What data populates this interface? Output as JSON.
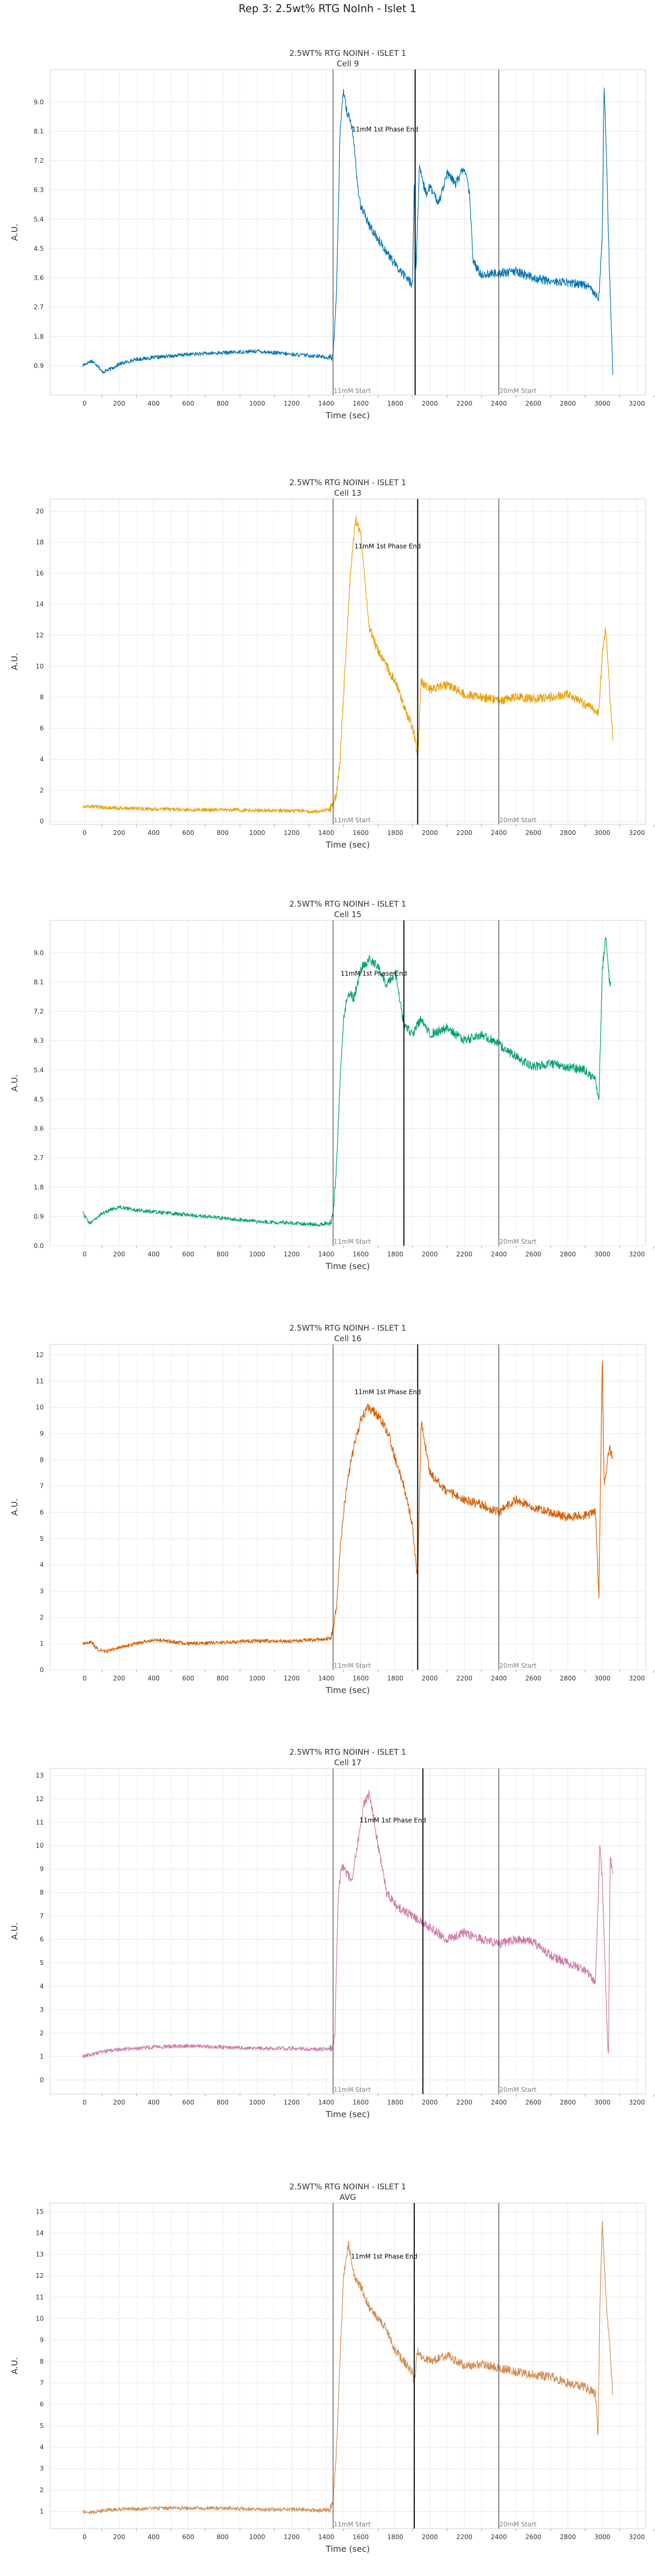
{
  "suptitle": "Rep 3: 2.5wt% RTG NoInh - Islet 1",
  "colors": {
    "cell9": "#0072b2",
    "cell13": "#e69f00",
    "cell15": "#009e73",
    "cell16": "#d55e00",
    "cell17": "#cc79a7",
    "avg": "#d08c50",
    "grid": "#e6e6e6",
    "spine": "#cccccc",
    "event_line": "#000000",
    "event_label": "#808080"
  },
  "chart_data": [
    {
      "type": "line",
      "title": "2.5WT% RTG NOINH - ISLET 1",
      "subtitle": "Cell 9",
      "xlabel": "Time (sec)",
      "ylabel": "A.U.",
      "xlim": [
        -200,
        3250
      ],
      "ylim": [
        0,
        10
      ],
      "xticks": [
        0,
        200,
        400,
        600,
        800,
        1000,
        1200,
        1400,
        1600,
        1800,
        2000,
        2200,
        2400,
        2600,
        2800,
        3000,
        3200
      ],
      "yticks": [
        0.9,
        1.8,
        2.7,
        3.6,
        4.5,
        5.4,
        6.3,
        7.2,
        8.1,
        9.0
      ],
      "ytick_labels": [
        "0.9",
        "1.8",
        "2.7",
        "3.6",
        "4.5",
        "5.4",
        "6.3",
        "7.2",
        "8.1",
        "9.0"
      ],
      "grid": true,
      "color_key": "cell9",
      "vlines": [
        {
          "x": 1440,
          "label": "11mM Start",
          "label_pos": "bottom"
        },
        {
          "x": 1915,
          "label": "11mM 1st Phase End",
          "label_pos": "top"
        },
        {
          "x": 2400,
          "label": "20mM Start",
          "label_pos": "bottom"
        }
      ],
      "phase_end_label_y": 8.1,
      "series": [
        {
          "x": [
            -10,
            0,
            40,
            80,
            100,
            150,
            200,
            300,
            400,
            600,
            800,
            1000,
            1200,
            1350,
            1420,
            1440,
            1460,
            1480,
            1500,
            1520,
            1540,
            1560,
            1580,
            1600,
            1650,
            1700,
            1750,
            1800,
            1850,
            1900,
            1910,
            1920,
            1940,
            1960,
            1980,
            2000,
            2050,
            2100,
            2150,
            2200,
            2230,
            2250,
            2270,
            2300,
            2400,
            2500,
            2600,
            2700,
            2800,
            2900,
            2950,
            2980,
            3000,
            3010,
            3020,
            3040,
            3050,
            3060
          ],
          "y": [
            0.9,
            0.95,
            1.05,
            0.9,
            0.7,
            0.8,
            0.95,
            1.1,
            1.15,
            1.25,
            1.3,
            1.35,
            1.25,
            1.2,
            1.15,
            1.2,
            3.2,
            8.0,
            9.4,
            8.7,
            8.5,
            7.8,
            6.5,
            5.8,
            5.2,
            4.8,
            4.4,
            4.0,
            3.7,
            3.4,
            6.5,
            3.8,
            7.0,
            6.5,
            6.2,
            6.4,
            5.9,
            6.8,
            6.5,
            7.0,
            6.2,
            4.2,
            3.9,
            3.7,
            3.75,
            3.8,
            3.6,
            3.5,
            3.45,
            3.4,
            3.2,
            3.0,
            5.0,
            9.5,
            8.0,
            4.0,
            2.5,
            0.7
          ]
        }
      ]
    },
    {
      "type": "line",
      "title": "2.5WT% RTG NOINH - ISLET 1",
      "subtitle": "Cell 13",
      "xlabel": "Time (sec)",
      "ylabel": "A.U.",
      "xlim": [
        -200,
        3250
      ],
      "ylim": [
        -0.2,
        20.8
      ],
      "xticks": [
        0,
        200,
        400,
        600,
        800,
        1000,
        1200,
        1400,
        1600,
        1800,
        2000,
        2200,
        2400,
        2600,
        2800,
        3000,
        3200
      ],
      "yticks": [
        0,
        2,
        4,
        6,
        8,
        10,
        12,
        14,
        16,
        18,
        20
      ],
      "ytick_labels": [
        "0",
        "2",
        "4",
        "6",
        "8",
        "10",
        "12",
        "14",
        "16",
        "18",
        "20"
      ],
      "grid": true,
      "color_key": "cell13",
      "vlines": [
        {
          "x": 1440,
          "label": "11mM Start",
          "label_pos": "bottom"
        },
        {
          "x": 1930,
          "label": "11mM 1st Phase End",
          "label_pos": "top"
        },
        {
          "x": 2400,
          "label": "20mM Start",
          "label_pos": "bottom"
        }
      ],
      "phase_end_label_y": 17.6,
      "series": [
        {
          "x": [
            -10,
            100,
            200,
            400,
            600,
            800,
            1000,
            1200,
            1350,
            1420,
            1440,
            1460,
            1480,
            1500,
            1540,
            1570,
            1600,
            1620,
            1650,
            1700,
            1750,
            1800,
            1850,
            1900,
            1920,
            1930,
            1950,
            2000,
            2100,
            2200,
            2300,
            2400,
            2500,
            2600,
            2700,
            2800,
            2900,
            2950,
            2980,
            3000,
            3020,
            3050,
            3060
          ],
          "y": [
            1.0,
            0.9,
            0.85,
            0.8,
            0.75,
            0.75,
            0.7,
            0.7,
            0.6,
            0.8,
            1.0,
            1.8,
            4.0,
            8.0,
            16.0,
            19.5,
            18.5,
            16.0,
            12.5,
            11.0,
            10.0,
            9.0,
            7.5,
            6.0,
            5.0,
            4.0,
            9.0,
            8.5,
            8.8,
            8.2,
            8.0,
            7.8,
            8.0,
            7.9,
            8.0,
            8.2,
            7.5,
            7.3,
            7.0,
            11.0,
            12.5,
            7.0,
            5.5
          ]
        }
      ]
    },
    {
      "type": "line",
      "title": "2.5WT% RTG NOINH - ISLET 1",
      "subtitle": "Cell 15",
      "xlabel": "Time (sec)",
      "ylabel": "A.U.",
      "xlim": [
        -200,
        3250
      ],
      "ylim": [
        0,
        10
      ],
      "xticks": [
        0,
        200,
        400,
        600,
        800,
        1000,
        1200,
        1400,
        1600,
        1800,
        2000,
        2200,
        2400,
        2600,
        2800,
        3000,
        3200
      ],
      "yticks": [
        0.0,
        0.9,
        1.8,
        2.7,
        3.6,
        4.5,
        5.4,
        6.3,
        7.2,
        8.1,
        9.0
      ],
      "ytick_labels": [
        "0.0",
        "0.9",
        "1.8",
        "2.7",
        "3.6",
        "4.5",
        "5.4",
        "6.3",
        "7.2",
        "8.1",
        "9.0"
      ],
      "grid": true,
      "color_key": "cell15",
      "vlines": [
        {
          "x": 1440,
          "label": "11mM Start",
          "label_pos": "bottom"
        },
        {
          "x": 1850,
          "label": "11mM 1st Phase End",
          "label_pos": "top"
        },
        {
          "x": 2400,
          "label": "20mM Start",
          "label_pos": "bottom"
        }
      ],
      "phase_end_label_y": 8.3,
      "series": [
        {
          "x": [
            -10,
            30,
            60,
            100,
            200,
            300,
            400,
            500,
            600,
            800,
            1000,
            1200,
            1350,
            1420,
            1440,
            1460,
            1480,
            1500,
            1530,
            1560,
            1600,
            1650,
            1700,
            1750,
            1800,
            1850,
            1900,
            1950,
            2000,
            2100,
            2200,
            2300,
            2400,
            2500,
            2600,
            2700,
            2800,
            2900,
            2960,
            2980,
            3000,
            3020,
            3040,
            3050
          ],
          "y": [
            1.0,
            0.7,
            0.8,
            1.0,
            1.2,
            1.1,
            1.05,
            1.0,
            0.95,
            0.85,
            0.75,
            0.7,
            0.65,
            0.7,
            0.9,
            2.5,
            5.0,
            7.0,
            7.8,
            7.6,
            8.5,
            8.8,
            8.6,
            8.0,
            8.4,
            6.8,
            6.5,
            7.0,
            6.5,
            6.7,
            6.3,
            6.5,
            6.2,
            5.8,
            5.5,
            5.6,
            5.5,
            5.4,
            5.1,
            4.5,
            8.5,
            9.5,
            8.2,
            8.0
          ]
        }
      ]
    },
    {
      "type": "line",
      "title": "2.5WT% RTG NOINH - ISLET 1",
      "subtitle": "Cell 16",
      "xlabel": "Time (sec)",
      "ylabel": "A.U.",
      "xlim": [
        -200,
        3250
      ],
      "ylim": [
        0,
        12.4
      ],
      "xticks": [
        0,
        200,
        400,
        600,
        800,
        1000,
        1200,
        1400,
        1600,
        1800,
        2000,
        2200,
        2400,
        2600,
        2800,
        3000,
        3200
      ],
      "yticks": [
        0,
        1,
        2,
        3,
        4,
        5,
        6,
        7,
        8,
        9,
        10,
        11,
        12
      ],
      "ytick_labels": [
        "0",
        "1",
        "2",
        "3",
        "4",
        "5",
        "6",
        "7",
        "8",
        "9",
        "10",
        "11",
        "12"
      ],
      "grid": true,
      "color_key": "cell16",
      "vlines": [
        {
          "x": 1440,
          "label": "11mM Start",
          "label_pos": "bottom"
        },
        {
          "x": 1930,
          "label": "11mM 1st Phase End",
          "label_pos": "top"
        },
        {
          "x": 2400,
          "label": "20mM Start",
          "label_pos": "bottom"
        }
      ],
      "phase_end_label_y": 10.5,
      "series": [
        {
          "x": [
            -10,
            40,
            80,
            120,
            200,
            300,
            400,
            600,
            800,
            1000,
            1200,
            1350,
            1420,
            1440,
            1460,
            1480,
            1500,
            1530,
            1560,
            1600,
            1640,
            1680,
            1720,
            1760,
            1800,
            1850,
            1900,
            1920,
            1930,
            1950,
            2000,
            2100,
            2200,
            2300,
            2400,
            2500,
            2600,
            2700,
            2800,
            2900,
            2960,
            2980,
            3000,
            3010,
            3020,
            3040,
            3060
          ],
          "y": [
            1.0,
            1.05,
            0.75,
            0.7,
            0.85,
            1.0,
            1.15,
            1.0,
            1.05,
            1.1,
            1.1,
            1.15,
            1.2,
            1.5,
            2.5,
            4.5,
            6.0,
            7.5,
            8.5,
            9.5,
            10.0,
            9.8,
            9.5,
            9.0,
            8.0,
            7.0,
            5.5,
            4.0,
            3.5,
            9.5,
            7.5,
            6.8,
            6.5,
            6.3,
            6.0,
            6.5,
            6.2,
            6.0,
            5.8,
            5.9,
            6.0,
            2.8,
            12.0,
            7.0,
            7.5,
            8.5,
            8.0
          ]
        }
      ]
    },
    {
      "type": "line",
      "title": "2.5WT% RTG NOINH - ISLET 1",
      "subtitle": "Cell 17",
      "xlabel": "Time (sec)",
      "ylabel": "A.U.",
      "xlim": [
        -200,
        3250
      ],
      "ylim": [
        -0.6,
        13.3
      ],
      "xticks": [
        0,
        200,
        400,
        600,
        800,
        1000,
        1200,
        1400,
        1600,
        1800,
        2000,
        2200,
        2400,
        2600,
        2800,
        3000,
        3200
      ],
      "yticks": [
        0,
        1,
        2,
        3,
        4,
        5,
        6,
        7,
        8,
        9,
        10,
        11,
        12,
        13
      ],
      "ytick_labels": [
        "0",
        "1",
        "2",
        "3",
        "4",
        "5",
        "6",
        "7",
        "8",
        "9",
        "10",
        "11",
        "12",
        "13"
      ],
      "grid": true,
      "color_key": "cell17",
      "vlines": [
        {
          "x": 1440,
          "label": "11mM Start",
          "label_pos": "bottom"
        },
        {
          "x": 1960,
          "label": "11mM 1st Phase End",
          "label_pos": "top"
        },
        {
          "x": 2400,
          "label": "20mM Start",
          "label_pos": "bottom"
        }
      ],
      "phase_end_label_y": 11.0,
      "series": [
        {
          "x": [
            -10,
            50,
            100,
            200,
            300,
            400,
            600,
            800,
            1000,
            1200,
            1350,
            1420,
            1440,
            1450,
            1470,
            1490,
            1520,
            1550,
            1580,
            1620,
            1650,
            1680,
            1700,
            1750,
            1800,
            1850,
            1900,
            1950,
            2000,
            2100,
            2200,
            2300,
            2400,
            2500,
            2600,
            2700,
            2800,
            2900,
            2960,
            2975,
            2985,
            3000,
            3020,
            3035,
            3045,
            3060
          ],
          "y": [
            1.0,
            1.1,
            1.2,
            1.3,
            1.35,
            1.4,
            1.45,
            1.4,
            1.35,
            1.35,
            1.3,
            1.35,
            1.5,
            2.0,
            8.0,
            9.2,
            8.8,
            8.5,
            10.0,
            11.8,
            12.2,
            11.0,
            10.0,
            8.0,
            7.5,
            7.2,
            7.0,
            6.8,
            6.5,
            6.0,
            6.3,
            6.0,
            5.8,
            6.0,
            5.9,
            5.3,
            5.0,
            4.7,
            4.2,
            7.5,
            10.2,
            8.5,
            4.0,
            0.6,
            9.5,
            8.8
          ]
        }
      ]
    },
    {
      "type": "line",
      "title": "2.5WT% RTG NOINH - ISLET 1",
      "subtitle": "AVG",
      "xlabel": "Time (sec)",
      "ylabel": "A.U.",
      "xlim": [
        -200,
        3250
      ],
      "ylim": [
        0.2,
        15.4
      ],
      "xticks": [
        0,
        200,
        400,
        600,
        800,
        1000,
        1200,
        1400,
        1600,
        1800,
        2000,
        2200,
        2400,
        2600,
        2800,
        3000,
        3200
      ],
      "yticks": [
        1,
        2,
        3,
        4,
        5,
        6,
        7,
        8,
        9,
        10,
        11,
        12,
        13,
        14,
        15
      ],
      "ytick_labels": [
        "1",
        "2",
        "3",
        "4",
        "5",
        "6",
        "7",
        "8",
        "9",
        "10",
        "11",
        "12",
        "13",
        "14",
        "15"
      ],
      "grid": true,
      "color_key": "avg",
      "vlines": [
        {
          "x": 1440,
          "label": "11mM Start",
          "label_pos": "bottom"
        },
        {
          "x": 1910,
          "label": "11mM 1st Phase End",
          "label_pos": "top"
        },
        {
          "x": 2400,
          "label": "20mM Start",
          "label_pos": "bottom"
        }
      ],
      "phase_end_label_y": 12.8,
      "series": [
        {
          "x": [
            -10,
            50,
            100,
            200,
            400,
            600,
            800,
            1000,
            1200,
            1350,
            1420,
            1440,
            1460,
            1480,
            1500,
            1530,
            1560,
            1600,
            1650,
            1700,
            1750,
            1800,
            1850,
            1900,
            1910,
            1930,
            1950,
            2000,
            2100,
            2200,
            2300,
            2400,
            2500,
            2600,
            2700,
            2800,
            2900,
            2960,
            2975,
            2985,
            3000,
            3020,
            3040,
            3060
          ],
          "y": [
            1.0,
            0.95,
            1.05,
            1.1,
            1.15,
            1.15,
            1.15,
            1.1,
            1.1,
            1.05,
            1.1,
            1.5,
            4.0,
            8.0,
            12.0,
            13.5,
            12.0,
            11.5,
            10.5,
            10.0,
            9.5,
            8.5,
            8.0,
            7.5,
            7.0,
            8.5,
            8.2,
            8.0,
            8.3,
            7.8,
            7.9,
            7.7,
            7.5,
            7.4,
            7.3,
            7.0,
            6.8,
            6.5,
            4.5,
            10.5,
            14.5,
            11.0,
            9.0,
            6.5
          ]
        }
      ]
    }
  ]
}
